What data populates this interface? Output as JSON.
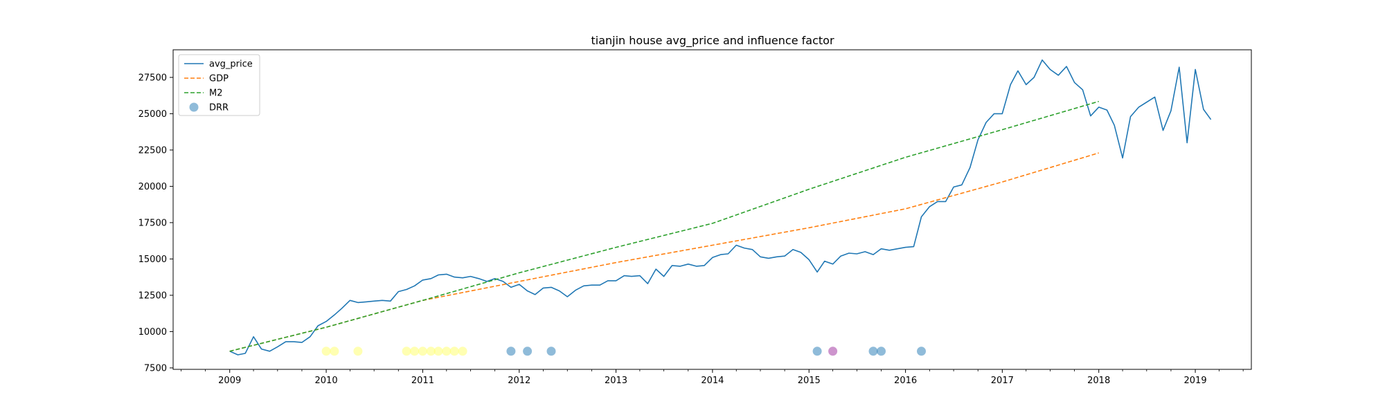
{
  "chart_data": {
    "type": "line",
    "title": "tianjin house avg_price and influence factor",
    "xlabel": "",
    "ylabel": "",
    "x_axis": "date",
    "xlim": [
      "2008-06-01",
      "2019-08-01"
    ],
    "ylim": [
      7400,
      29400
    ],
    "x_ticks": [
      "2009",
      "2010",
      "2011",
      "2012",
      "2013",
      "2014",
      "2015",
      "2016",
      "2017",
      "2018",
      "2019"
    ],
    "y_ticks": [
      "7500",
      "10000",
      "12500",
      "15000",
      "17500",
      "20000",
      "22500",
      "25000",
      "27500"
    ],
    "grid": false,
    "legend_position": "top-left",
    "legend": [
      "avg_price",
      "GDP",
      "M2",
      "DRR"
    ],
    "series": [
      {
        "name": "avg_price",
        "style": "solid",
        "color": "#1f77b4",
        "points": [
          [
            "2009-01",
            8650
          ],
          [
            "2009-02",
            8400
          ],
          [
            "2009-03",
            8500
          ],
          [
            "2009-04",
            9650
          ],
          [
            "2009-05",
            8800
          ],
          [
            "2009-06",
            8650
          ],
          [
            "2009-07",
            8950
          ],
          [
            "2009-08",
            9300
          ],
          [
            "2009-09",
            9300
          ],
          [
            "2009-10",
            9250
          ],
          [
            "2009-11",
            9650
          ],
          [
            "2009-12",
            10400
          ],
          [
            "2010-01",
            10700
          ],
          [
            "2010-02",
            11150
          ],
          [
            "2010-03",
            11600
          ],
          [
            "2010-04",
            12150
          ],
          [
            "2010-05",
            12000
          ],
          [
            "2010-06",
            12050
          ],
          [
            "2010-07",
            12100
          ],
          [
            "2010-08",
            12150
          ],
          [
            "2010-09",
            12100
          ],
          [
            "2010-10",
            12750
          ],
          [
            "2010-11",
            12900
          ],
          [
            "2010-12",
            13150
          ],
          [
            "2011-01",
            13550
          ],
          [
            "2011-02",
            13650
          ],
          [
            "2011-03",
            13900
          ],
          [
            "2011-04",
            13950
          ],
          [
            "2011-05",
            13750
          ],
          [
            "2011-06",
            13700
          ],
          [
            "2011-07",
            13800
          ],
          [
            "2011-08",
            13650
          ],
          [
            "2011-09",
            13450
          ],
          [
            "2011-10",
            13650
          ],
          [
            "2011-11",
            13450
          ],
          [
            "2011-12",
            13050
          ],
          [
            "2012-01",
            13250
          ],
          [
            "2012-02",
            12800
          ],
          [
            "2012-03",
            12550
          ],
          [
            "2012-04",
            13000
          ],
          [
            "2012-05",
            13050
          ],
          [
            "2012-06",
            12800
          ],
          [
            "2012-07",
            12400
          ],
          [
            "2012-08",
            12850
          ],
          [
            "2012-09",
            13150
          ],
          [
            "2012-10",
            13200
          ],
          [
            "2012-11",
            13200
          ],
          [
            "2012-12",
            13500
          ],
          [
            "2013-01",
            13500
          ],
          [
            "2013-02",
            13850
          ],
          [
            "2013-03",
            13800
          ],
          [
            "2013-04",
            13850
          ],
          [
            "2013-05",
            13300
          ],
          [
            "2013-06",
            14300
          ],
          [
            "2013-07",
            13800
          ],
          [
            "2013-08",
            14550
          ],
          [
            "2013-09",
            14500
          ],
          [
            "2013-10",
            14650
          ],
          [
            "2013-11",
            14500
          ],
          [
            "2013-12",
            14550
          ],
          [
            "2014-01",
            15100
          ],
          [
            "2014-02",
            15300
          ],
          [
            "2014-03",
            15350
          ],
          [
            "2014-04",
            15950
          ],
          [
            "2014-05",
            15750
          ],
          [
            "2014-06",
            15650
          ],
          [
            "2014-07",
            15150
          ],
          [
            "2014-08",
            15050
          ],
          [
            "2014-09",
            15150
          ],
          [
            "2014-10",
            15200
          ],
          [
            "2014-11",
            15650
          ],
          [
            "2014-12",
            15450
          ],
          [
            "2015-01",
            14950
          ],
          [
            "2015-02",
            14100
          ],
          [
            "2015-03",
            14850
          ],
          [
            "2015-04",
            14650
          ],
          [
            "2015-05",
            15200
          ],
          [
            "2015-06",
            15400
          ],
          [
            "2015-07",
            15350
          ],
          [
            "2015-08",
            15500
          ],
          [
            "2015-09",
            15300
          ],
          [
            "2015-10",
            15700
          ],
          [
            "2015-11",
            15600
          ],
          [
            "2015-12",
            15700
          ],
          [
            "2016-01",
            15800
          ],
          [
            "2016-02",
            15850
          ],
          [
            "2016-03",
            17900
          ],
          [
            "2016-04",
            18600
          ],
          [
            "2016-05",
            18950
          ],
          [
            "2016-06",
            18950
          ],
          [
            "2016-07",
            19950
          ],
          [
            "2016-08",
            20100
          ],
          [
            "2016-09",
            21300
          ],
          [
            "2016-10",
            23200
          ],
          [
            "2016-11",
            24400
          ],
          [
            "2016-12",
            25000
          ],
          [
            "2017-01",
            25000
          ],
          [
            "2017-02",
            27000
          ],
          [
            "2017-03",
            27950
          ],
          [
            "2017-04",
            27000
          ],
          [
            "2017-05",
            27500
          ],
          [
            "2017-06",
            28700
          ],
          [
            "2017-07",
            28050
          ],
          [
            "2017-08",
            27650
          ],
          [
            "2017-09",
            28250
          ],
          [
            "2017-10",
            27150
          ],
          [
            "2017-11",
            26650
          ],
          [
            "2017-12",
            24850
          ],
          [
            "2018-01",
            25450
          ],
          [
            "2018-02",
            25250
          ],
          [
            "2018-03",
            24200
          ],
          [
            "2018-04",
            21950
          ],
          [
            "2018-05",
            24800
          ],
          [
            "2018-06",
            25450
          ],
          [
            "2018-08",
            26150
          ],
          [
            "2018-09",
            23850
          ],
          [
            "2018-10",
            25200
          ],
          [
            "2018-11",
            28200
          ],
          [
            "2018-12",
            23000
          ],
          [
            "2019-01",
            28050
          ],
          [
            "2019-02",
            25300
          ],
          [
            "2019-03",
            24600
          ]
        ]
      },
      {
        "name": "GDP",
        "style": "dashed",
        "color": "#ff7f0e",
        "points": [
          [
            "2009-01",
            8650
          ],
          [
            "2010-01",
            10300
          ],
          [
            "2011-01",
            12150
          ],
          [
            "2012-01",
            13450
          ],
          [
            "2013-01",
            14750
          ],
          [
            "2014-01",
            15950
          ],
          [
            "2015-01",
            17150
          ],
          [
            "2016-01",
            18450
          ],
          [
            "2017-01",
            20300
          ],
          [
            "2018-01",
            22300
          ]
        ]
      },
      {
        "name": "M2",
        "style": "dashed",
        "color": "#2ca02c",
        "points": [
          [
            "2009-01",
            8650
          ],
          [
            "2010-01",
            10300
          ],
          [
            "2011-01",
            12150
          ],
          [
            "2012-01",
            14050
          ],
          [
            "2013-01",
            15800
          ],
          [
            "2014-01",
            17450
          ],
          [
            "2015-01",
            19800
          ],
          [
            "2016-01",
            22000
          ],
          [
            "2017-01",
            23900
          ],
          [
            "2018-01",
            25850
          ]
        ]
      },
      {
        "name": "DRR",
        "style": "scatter",
        "color": "#1f77b4",
        "y": 8650,
        "points": [
          {
            "x": "2010-01",
            "color": "#ffff66"
          },
          {
            "x": "2010-02",
            "color": "#ffff66"
          },
          {
            "x": "2010-05",
            "color": "#ffff66"
          },
          {
            "x": "2010-11",
            "color": "#ffff66"
          },
          {
            "x": "2010-12",
            "color": "#ffff66"
          },
          {
            "x": "2011-01",
            "color": "#ffff66"
          },
          {
            "x": "2011-02",
            "color": "#ffff66"
          },
          {
            "x": "2011-03",
            "color": "#ffff66"
          },
          {
            "x": "2011-04",
            "color": "#ffff66"
          },
          {
            "x": "2011-05",
            "color": "#ffff66"
          },
          {
            "x": "2011-06",
            "color": "#ffff66"
          },
          {
            "x": "2011-12",
            "color": "#1f77b4"
          },
          {
            "x": "2012-02",
            "color": "#1f77b4"
          },
          {
            "x": "2012-05",
            "color": "#1f77b4"
          },
          {
            "x": "2015-02",
            "color": "#1f77b4"
          },
          {
            "x": "2015-04",
            "color": "#9b2a9b"
          },
          {
            "x": "2015-09",
            "color": "#1f77b4"
          },
          {
            "x": "2015-10",
            "color": "#1f77b4"
          },
          {
            "x": "2016-03",
            "color": "#1f77b4"
          }
        ]
      }
    ]
  }
}
